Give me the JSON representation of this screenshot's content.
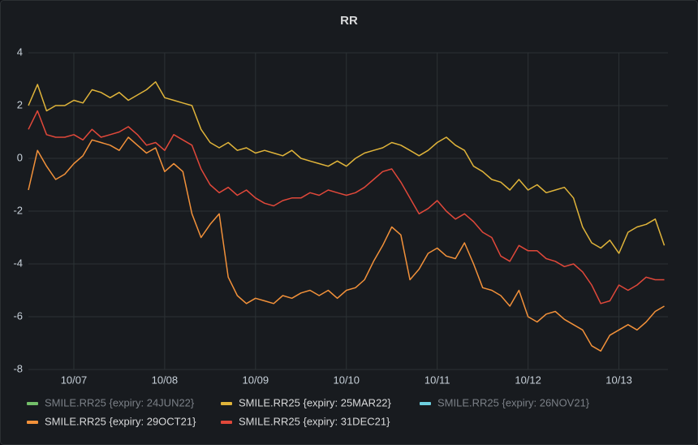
{
  "chart_data": {
    "type": "line",
    "title": "RR",
    "x": [
      6.5,
      6.6,
      6.7,
      6.8,
      6.9,
      7.0,
      7.1,
      7.2,
      7.3,
      7.4,
      7.5,
      7.6,
      7.7,
      7.8,
      7.9,
      8.0,
      8.1,
      8.2,
      8.3,
      8.4,
      8.5,
      8.6,
      8.7,
      8.8,
      8.9,
      9.0,
      9.1,
      9.2,
      9.3,
      9.4,
      9.5,
      9.6,
      9.7,
      9.8,
      9.9,
      10.0,
      10.1,
      10.2,
      10.3,
      10.4,
      10.5,
      10.6,
      10.7,
      10.8,
      10.9,
      11.0,
      11.1,
      11.2,
      11.3,
      11.4,
      11.5,
      11.6,
      11.7,
      11.8,
      11.9,
      12.0,
      12.1,
      12.2,
      12.3,
      12.4,
      12.5,
      12.6,
      12.7,
      12.8,
      12.9,
      13.0,
      13.1,
      13.2,
      13.3,
      13.4,
      13.5
    ],
    "xlim": [
      6.5,
      13.54
    ],
    "xticks": [
      {
        "value": 7,
        "label": "10/07"
      },
      {
        "value": 8,
        "label": "10/08"
      },
      {
        "value": 9,
        "label": "10/09"
      },
      {
        "value": 10,
        "label": "10/10"
      },
      {
        "value": 11,
        "label": "10/11"
      },
      {
        "value": 12,
        "label": "10/12"
      },
      {
        "value": 13,
        "label": "10/13"
      }
    ],
    "ylim": [
      -8,
      4
    ],
    "yticks": [
      -8,
      -6,
      -4,
      -2,
      0,
      2,
      4
    ],
    "grid": true,
    "series": [
      {
        "name": "SMILE.RR25 {expiry: 24JUN22}",
        "color": "#73bf69",
        "hidden": true,
        "values": [
          null,
          null,
          null,
          null,
          null,
          null,
          null,
          null,
          null,
          null,
          null,
          null,
          null,
          null,
          null,
          null,
          null,
          null,
          null,
          null,
          null,
          null,
          null,
          null,
          null,
          null,
          null,
          null,
          null,
          null,
          null,
          null,
          null,
          null,
          null,
          null,
          null,
          null,
          null,
          null,
          null,
          null,
          null,
          null,
          null,
          null,
          null,
          null,
          null,
          null,
          null,
          null,
          null,
          null,
          null,
          null,
          null,
          null,
          null,
          null,
          null,
          null,
          null,
          null,
          null,
          null,
          null,
          null,
          null,
          null,
          null
        ]
      },
      {
        "name": "SMILE.RR25 {expiry: 25MAR22}",
        "color": "#e0b43a",
        "hidden": false,
        "values": [
          2.0,
          2.8,
          1.8,
          2.0,
          2.0,
          2.2,
          2.1,
          2.6,
          2.5,
          2.3,
          2.5,
          2.2,
          2.4,
          2.6,
          2.9,
          2.3,
          2.2,
          2.1,
          2.0,
          1.1,
          0.6,
          0.4,
          0.6,
          0.3,
          0.4,
          0.2,
          0.3,
          0.2,
          0.1,
          0.3,
          0.0,
          -0.1,
          -0.2,
          -0.3,
          -0.1,
          -0.3,
          0.0,
          0.2,
          0.3,
          0.4,
          0.6,
          0.5,
          0.3,
          0.1,
          0.3,
          0.6,
          0.8,
          0.5,
          0.3,
          -0.3,
          -0.5,
          -0.8,
          -0.9,
          -1.2,
          -0.8,
          -1.2,
          -1.0,
          -1.3,
          -1.2,
          -1.1,
          -1.5,
          -2.6,
          -3.2,
          -3.4,
          -3.1,
          -3.6,
          -2.8,
          -2.6,
          -2.5,
          -2.3,
          -3.3
        ]
      },
      {
        "name": "SMILE.RR25 {expiry: 26NOV21}",
        "color": "#6ed0e0",
        "hidden": true,
        "values": [
          null,
          null,
          null,
          null,
          null,
          null,
          null,
          null,
          null,
          null,
          null,
          null,
          null,
          null,
          null,
          null,
          null,
          null,
          null,
          null,
          null,
          null,
          null,
          null,
          null,
          null,
          null,
          null,
          null,
          null,
          null,
          null,
          null,
          null,
          null,
          null,
          null,
          null,
          null,
          null,
          null,
          null,
          null,
          null,
          null,
          null,
          null,
          null,
          null,
          null,
          null,
          null,
          null,
          null,
          null,
          null,
          null,
          null,
          null,
          null,
          null,
          null,
          null,
          null,
          null,
          null,
          null,
          null,
          null,
          null,
          null
        ]
      },
      {
        "name": "SMILE.RR25 {expiry: 29OCT21}",
        "color": "#f2913a",
        "hidden": false,
        "values": [
          -1.2,
          0.3,
          -0.3,
          -0.8,
          -0.6,
          -0.2,
          0.1,
          0.7,
          0.6,
          0.5,
          0.3,
          0.8,
          0.5,
          0.2,
          0.4,
          -0.5,
          -0.2,
          -0.5,
          -2.1,
          -3.0,
          -2.5,
          -2.1,
          -4.5,
          -5.2,
          -5.5,
          -5.3,
          -5.4,
          -5.5,
          -5.2,
          -5.3,
          -5.1,
          -5.0,
          -5.2,
          -5.0,
          -5.3,
          -5.0,
          -4.9,
          -4.6,
          -3.9,
          -3.3,
          -2.6,
          -2.9,
          -4.6,
          -4.2,
          -3.6,
          -3.4,
          -3.7,
          -3.8,
          -3.2,
          -4.0,
          -4.9,
          -5.0,
          -5.2,
          -5.6,
          -5.0,
          -6.0,
          -6.2,
          -5.9,
          -5.8,
          -6.1,
          -6.3,
          -6.5,
          -7.1,
          -7.3,
          -6.7,
          -6.5,
          -6.3,
          -6.5,
          -6.2,
          -5.8,
          -5.6
        ]
      },
      {
        "name": "SMILE.RR25 {expiry: 31DEC21}",
        "color": "#e0483a",
        "hidden": false,
        "values": [
          1.1,
          1.8,
          0.9,
          0.8,
          0.8,
          0.9,
          0.7,
          1.1,
          0.8,
          0.9,
          1.0,
          1.2,
          0.9,
          0.5,
          0.6,
          0.3,
          0.9,
          0.7,
          0.5,
          -0.4,
          -1.0,
          -1.3,
          -1.1,
          -1.4,
          -1.2,
          -1.5,
          -1.7,
          -1.8,
          -1.6,
          -1.5,
          -1.5,
          -1.3,
          -1.4,
          -1.2,
          -1.3,
          -1.4,
          -1.3,
          -1.1,
          -0.8,
          -0.5,
          -0.4,
          -0.9,
          -1.5,
          -2.1,
          -1.9,
          -1.6,
          -2.0,
          -2.3,
          -2.1,
          -2.4,
          -2.8,
          -3.0,
          -3.7,
          -3.9,
          -3.3,
          -3.5,
          -3.5,
          -3.8,
          -3.9,
          -4.1,
          -4.0,
          -4.3,
          -4.8,
          -5.5,
          -5.4,
          -4.8,
          -5.0,
          -4.8,
          -4.5,
          -4.6,
          -4.6
        ]
      }
    ]
  }
}
